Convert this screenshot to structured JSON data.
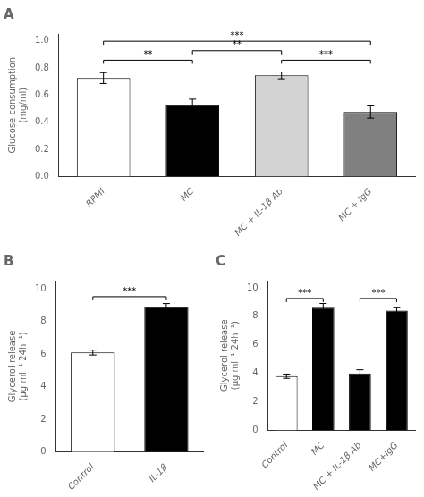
{
  "chart_data": [
    {
      "type": "bar",
      "title": "A",
      "categories": [
        "RPMI",
        "MC",
        "MC + IL-1β Ab",
        "MC + IgG"
      ],
      "values": [
        0.725,
        0.525,
        0.745,
        0.475
      ],
      "errors": [
        0.04,
        0.045,
        0.025,
        0.045
      ],
      "colors": [
        "white",
        "black",
        "lightgray",
        "gray"
      ],
      "ylabel": "Glucose consumption\n(mg/ml)",
      "ylim": [
        0,
        1.05
      ],
      "yticks": [
        {
          "value": 0,
          "label": "0.0"
        },
        0.2,
        0.4,
        0.6,
        0.8,
        {
          "value": 1,
          "label": "1.0"
        }
      ],
      "grid": false,
      "annotations": [
        {
          "text": "**",
          "between": [
            "RPMI",
            "MC"
          ],
          "y": 0.83
        },
        {
          "text": "**",
          "between": [
            "MC",
            "MC + IL-1β Ab"
          ],
          "y": 0.9
        },
        {
          "text": "***",
          "between": [
            "MC + IL-1β Ab",
            "MC + IgG"
          ],
          "y": 0.83
        },
        {
          "text": "***",
          "between": [
            "RPMI",
            "MC + IgG"
          ],
          "y": 0.97
        }
      ]
    },
    {
      "type": "bar",
      "title": "B",
      "categories": [
        "Control",
        "IL-1β"
      ],
      "values": [
        6.1,
        8.9
      ],
      "errors": [
        0.15,
        0.2
      ],
      "colors": [
        "white",
        "black"
      ],
      "ylabel": "Glycerol release\n(μg ml⁻¹ 24h⁻¹)",
      "ylim": [
        0,
        10.5
      ],
      "yticks": [
        0,
        2,
        4,
        6,
        8,
        10
      ],
      "grid": false,
      "annotations": [
        {
          "text": "***",
          "between": [
            "Control",
            "IL-1β"
          ],
          "y": 9.3
        }
      ]
    },
    {
      "type": "bar",
      "title": "C",
      "categories": [
        "Control",
        "MC",
        "MC + IL-1β Ab",
        "MC+IgG"
      ],
      "values": [
        3.8,
        8.6,
        4.0,
        8.4
      ],
      "errors": [
        0.15,
        0.3,
        0.25,
        0.2
      ],
      "colors": [
        "white",
        "black",
        "black",
        "black"
      ],
      "ylabel": "Glycerol release\n(μg ml⁻¹ 24h⁻¹)",
      "ylim": [
        0,
        10.5
      ],
      "yticks": [
        0,
        2,
        4,
        6,
        8,
        10
      ],
      "grid": false,
      "annotations": [
        {
          "text": "***",
          "between": [
            "Control",
            "MC"
          ],
          "y": 9.0
        },
        {
          "text": "***",
          "between": [
            "MC + IL-1β Ab",
            "MC+IgG"
          ],
          "y": 9.0
        }
      ]
    }
  ]
}
